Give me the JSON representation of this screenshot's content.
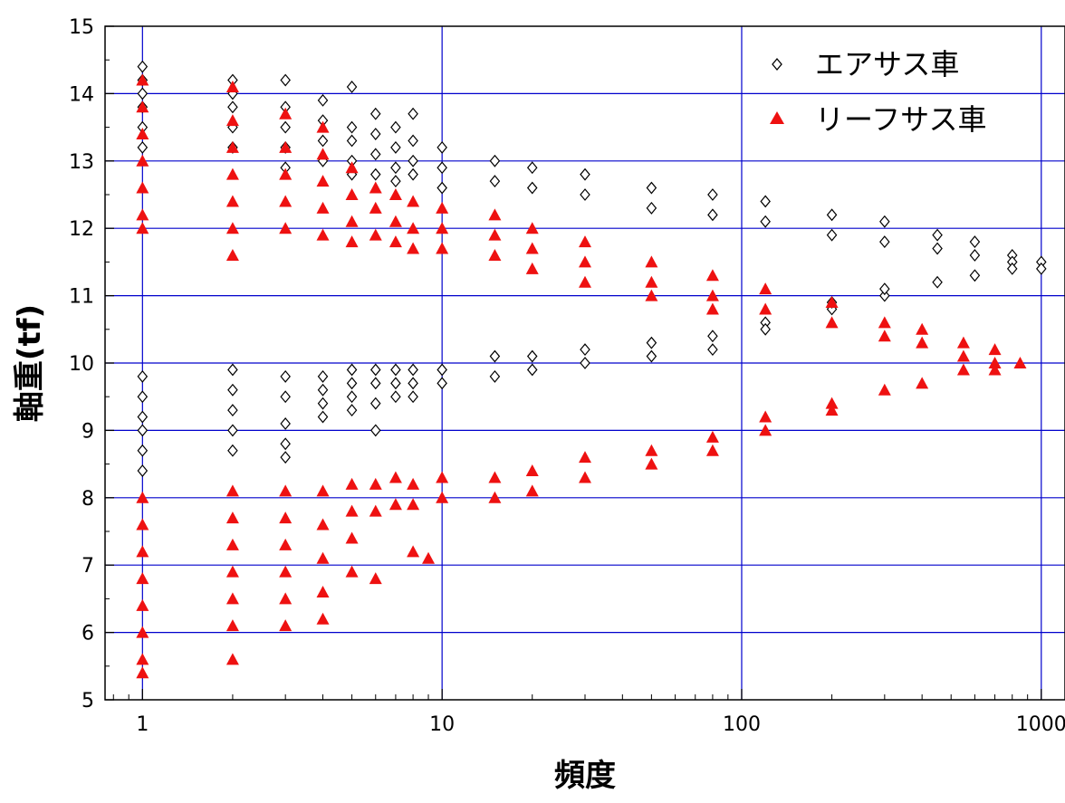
{
  "chart_data": {
    "type": "scatter",
    "title": "",
    "xlabel": "頻度",
    "ylabel": "軸重(tf)",
    "x_scale": "log",
    "xlim": [
      0.75,
      1200
    ],
    "ylim": [
      5,
      15
    ],
    "x_ticks": [
      {
        "value": 1,
        "label": "1"
      },
      {
        "value": 10,
        "label": "10"
      },
      {
        "value": 100,
        "label": "100"
      },
      {
        "value": 1000,
        "label": "1000"
      }
    ],
    "y_ticks": [
      {
        "value": 5,
        "label": "5"
      },
      {
        "value": 6,
        "label": "6"
      },
      {
        "value": 7,
        "label": "7"
      },
      {
        "value": 8,
        "label": "8"
      },
      {
        "value": 9,
        "label": "9"
      },
      {
        "value": 10,
        "label": "10"
      },
      {
        "value": 11,
        "label": "11"
      },
      {
        "value": 12,
        "label": "12"
      },
      {
        "value": 13,
        "label": "13"
      },
      {
        "value": 14,
        "label": "14"
      },
      {
        "value": 15,
        "label": "15"
      }
    ],
    "grid": true,
    "grid_color": "#0000cc",
    "legend_position": "top-right",
    "series": [
      {
        "name": "エアサス車",
        "marker": "diamond-open",
        "color": "#000000",
        "points": [
          [
            1,
            14.4
          ],
          [
            1,
            14.2
          ],
          [
            1,
            14.0
          ],
          [
            1,
            13.8
          ],
          [
            1,
            13.5
          ],
          [
            1,
            13.2
          ],
          [
            1,
            9.8
          ],
          [
            1,
            9.5
          ],
          [
            1,
            9.2
          ],
          [
            1,
            9.0
          ],
          [
            1,
            8.7
          ],
          [
            1,
            8.4
          ],
          [
            2,
            14.2
          ],
          [
            2,
            14.0
          ],
          [
            2,
            13.8
          ],
          [
            2,
            13.5
          ],
          [
            2,
            13.2
          ],
          [
            2,
            9.9
          ],
          [
            2,
            9.6
          ],
          [
            2,
            9.3
          ],
          [
            2,
            9.0
          ],
          [
            2,
            8.7
          ],
          [
            3,
            14.2
          ],
          [
            3,
            13.8
          ],
          [
            3,
            13.5
          ],
          [
            3,
            13.2
          ],
          [
            3,
            12.9
          ],
          [
            3,
            9.8
          ],
          [
            3,
            9.5
          ],
          [
            3,
            9.1
          ],
          [
            3,
            8.8
          ],
          [
            3,
            8.6
          ],
          [
            4,
            13.9
          ],
          [
            4,
            13.6
          ],
          [
            4,
            13.3
          ],
          [
            4,
            13.0
          ],
          [
            4,
            9.8
          ],
          [
            4,
            9.6
          ],
          [
            4,
            9.4
          ],
          [
            4,
            9.2
          ],
          [
            5,
            14.1
          ],
          [
            5,
            13.5
          ],
          [
            5,
            13.3
          ],
          [
            5,
            13.0
          ],
          [
            5,
            12.8
          ],
          [
            5,
            9.9
          ],
          [
            5,
            9.7
          ],
          [
            5,
            9.5
          ],
          [
            5,
            9.3
          ],
          [
            6,
            13.7
          ],
          [
            6,
            13.4
          ],
          [
            6,
            13.1
          ],
          [
            6,
            12.8
          ],
          [
            6,
            9.9
          ],
          [
            6,
            9.7
          ],
          [
            6,
            9.4
          ],
          [
            6,
            9.0
          ],
          [
            7,
            13.5
          ],
          [
            7,
            13.2
          ],
          [
            7,
            12.9
          ],
          [
            7,
            12.7
          ],
          [
            7,
            9.9
          ],
          [
            7,
            9.7
          ],
          [
            7,
            9.5
          ],
          [
            8,
            13.7
          ],
          [
            8,
            13.3
          ],
          [
            8,
            13.0
          ],
          [
            8,
            12.8
          ],
          [
            8,
            9.9
          ],
          [
            8,
            9.7
          ],
          [
            8,
            9.5
          ],
          [
            10,
            13.2
          ],
          [
            10,
            12.9
          ],
          [
            10,
            12.6
          ],
          [
            10,
            9.9
          ],
          [
            10,
            9.7
          ],
          [
            15,
            13.0
          ],
          [
            15,
            12.7
          ],
          [
            15,
            10.1
          ],
          [
            15,
            9.8
          ],
          [
            20,
            12.9
          ],
          [
            20,
            12.6
          ],
          [
            20,
            10.1
          ],
          [
            20,
            9.9
          ],
          [
            30,
            12.8
          ],
          [
            30,
            12.5
          ],
          [
            30,
            10.2
          ],
          [
            30,
            10.0
          ],
          [
            50,
            12.6
          ],
          [
            50,
            12.3
          ],
          [
            50,
            10.3
          ],
          [
            50,
            10.1
          ],
          [
            80,
            12.5
          ],
          [
            80,
            12.2
          ],
          [
            80,
            10.4
          ],
          [
            80,
            10.2
          ],
          [
            120,
            12.4
          ],
          [
            120,
            12.1
          ],
          [
            120,
            10.6
          ],
          [
            120,
            10.5
          ],
          [
            200,
            12.2
          ],
          [
            200,
            11.9
          ],
          [
            200,
            10.8
          ],
          [
            200,
            10.9
          ],
          [
            300,
            12.1
          ],
          [
            300,
            11.8
          ],
          [
            300,
            11.0
          ],
          [
            300,
            11.1
          ],
          [
            450,
            11.9
          ],
          [
            450,
            11.7
          ],
          [
            450,
            11.2
          ],
          [
            600,
            11.8
          ],
          [
            600,
            11.6
          ],
          [
            600,
            11.3
          ],
          [
            800,
            11.6
          ],
          [
            800,
            11.5
          ],
          [
            800,
            11.4
          ],
          [
            1000,
            11.5
          ],
          [
            1000,
            11.4
          ]
        ]
      },
      {
        "name": "リーフサス車",
        "marker": "triangle-filled",
        "color": "#ee1111",
        "points": [
          [
            1,
            14.2
          ],
          [
            1,
            13.8
          ],
          [
            1,
            13.4
          ],
          [
            1,
            13.0
          ],
          [
            1,
            12.6
          ],
          [
            1,
            12.2
          ],
          [
            1,
            12.0
          ],
          [
            1,
            8.0
          ],
          [
            1,
            7.6
          ],
          [
            1,
            7.2
          ],
          [
            1,
            6.8
          ],
          [
            1,
            6.4
          ],
          [
            1,
            6.0
          ],
          [
            1,
            5.6
          ],
          [
            1,
            5.4
          ],
          [
            2,
            14.1
          ],
          [
            2,
            13.6
          ],
          [
            2,
            13.2
          ],
          [
            2,
            12.8
          ],
          [
            2,
            12.4
          ],
          [
            2,
            12.0
          ],
          [
            2,
            11.6
          ],
          [
            2,
            8.1
          ],
          [
            2,
            7.7
          ],
          [
            2,
            7.3
          ],
          [
            2,
            6.9
          ],
          [
            2,
            6.5
          ],
          [
            2,
            6.1
          ],
          [
            2,
            5.6
          ],
          [
            3,
            13.7
          ],
          [
            3,
            13.2
          ],
          [
            3,
            12.8
          ],
          [
            3,
            12.4
          ],
          [
            3,
            12.0
          ],
          [
            3,
            8.1
          ],
          [
            3,
            7.7
          ],
          [
            3,
            7.3
          ],
          [
            3,
            6.9
          ],
          [
            3,
            6.5
          ],
          [
            3,
            6.1
          ],
          [
            4,
            13.5
          ],
          [
            4,
            13.1
          ],
          [
            4,
            12.7
          ],
          [
            4,
            12.3
          ],
          [
            4,
            11.9
          ],
          [
            4,
            8.1
          ],
          [
            4,
            7.6
          ],
          [
            4,
            7.1
          ],
          [
            4,
            6.6
          ],
          [
            4,
            6.2
          ],
          [
            5,
            12.9
          ],
          [
            5,
            12.5
          ],
          [
            5,
            12.1
          ],
          [
            5,
            11.8
          ],
          [
            5,
            8.2
          ],
          [
            5,
            7.8
          ],
          [
            5,
            7.4
          ],
          [
            5,
            6.9
          ],
          [
            6,
            12.6
          ],
          [
            6,
            12.3
          ],
          [
            6,
            11.9
          ],
          [
            6,
            8.2
          ],
          [
            6,
            7.8
          ],
          [
            6,
            6.8
          ],
          [
            7,
            12.5
          ],
          [
            7,
            12.1
          ],
          [
            7,
            11.8
          ],
          [
            7,
            8.3
          ],
          [
            7,
            7.9
          ],
          [
            8,
            12.4
          ],
          [
            8,
            12.0
          ],
          [
            8,
            11.7
          ],
          [
            8,
            8.2
          ],
          [
            8,
            7.9
          ],
          [
            8,
            7.2
          ],
          [
            9,
            7.1
          ],
          [
            10,
            12.3
          ],
          [
            10,
            12.0
          ],
          [
            10,
            11.7
          ],
          [
            10,
            8.3
          ],
          [
            10,
            8.0
          ],
          [
            15,
            12.2
          ],
          [
            15,
            11.9
          ],
          [
            15,
            11.6
          ],
          [
            15,
            8.3
          ],
          [
            15,
            8.0
          ],
          [
            20,
            12.0
          ],
          [
            20,
            11.7
          ],
          [
            20,
            11.4
          ],
          [
            20,
            8.4
          ],
          [
            20,
            8.1
          ],
          [
            30,
            11.8
          ],
          [
            30,
            11.5
          ],
          [
            30,
            11.2
          ],
          [
            30,
            8.6
          ],
          [
            30,
            8.3
          ],
          [
            50,
            11.5
          ],
          [
            50,
            11.2
          ],
          [
            50,
            11.0
          ],
          [
            50,
            8.7
          ],
          [
            50,
            8.5
          ],
          [
            80,
            11.3
          ],
          [
            80,
            11.0
          ],
          [
            80,
            10.8
          ],
          [
            80,
            8.9
          ],
          [
            80,
            8.7
          ],
          [
            120,
            11.1
          ],
          [
            120,
            10.8
          ],
          [
            120,
            9.2
          ],
          [
            120,
            9.0
          ],
          [
            200,
            10.9
          ],
          [
            200,
            10.6
          ],
          [
            200,
            9.4
          ],
          [
            200,
            9.3
          ],
          [
            300,
            10.6
          ],
          [
            300,
            10.4
          ],
          [
            300,
            9.6
          ],
          [
            400,
            10.5
          ],
          [
            400,
            10.3
          ],
          [
            400,
            9.7
          ],
          [
            550,
            10.3
          ],
          [
            550,
            10.1
          ],
          [
            550,
            9.9
          ],
          [
            700,
            10.2
          ],
          [
            700,
            10.0
          ],
          [
            700,
            9.9
          ],
          [
            850,
            10.0
          ]
        ]
      }
    ]
  }
}
